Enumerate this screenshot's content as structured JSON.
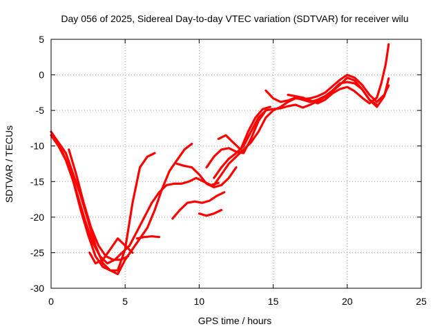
{
  "chart_data": {
    "type": "line",
    "title": "Day 056 of 2025, Sidereal Day-to-day VTEC variation (SDTVAR) for receiver wilu",
    "xlabel": "GPS time / hours",
    "ylabel": "SDTVAR / TECUs",
    "xlim": [
      0,
      25
    ],
    "ylim": [
      -30,
      5
    ],
    "xticks": [
      0,
      5,
      10,
      15,
      20,
      25
    ],
    "yticks": [
      -30,
      -25,
      -20,
      -15,
      -10,
      -5,
      0,
      5
    ],
    "x_tick_labels": [
      "0",
      "5",
      "10",
      "15",
      "20",
      "25"
    ],
    "y_tick_labels": [
      "-30",
      "-25",
      "-20",
      "-15",
      "-10",
      "-5",
      "0",
      "5"
    ],
    "grid": true,
    "color": "#ff0000",
    "series": [
      {
        "x": [
          0,
          0.5,
          1.0,
          1.5,
          2.0,
          2.5,
          3.0,
          3.5,
          4.0,
          4.5,
          5.0,
          5.5,
          6.0,
          6.5,
          7.0
        ],
        "y": [
          -8.5,
          -10,
          -12,
          -15,
          -19,
          -22.5,
          -25.5,
          -27,
          -27.5,
          -27.5,
          -24.5,
          -18,
          -13,
          -11.5,
          -11
        ]
      },
      {
        "x": [
          0,
          0.5,
          1.0,
          1.5,
          2.0,
          2.5,
          3.0,
          3.5,
          4.0,
          4.5,
          5.0,
          5.5,
          6.0,
          6.5,
          7.0,
          7.5,
          8.0,
          8.5,
          9.0,
          9.5
        ],
        "y": [
          -8,
          -9.5,
          -11,
          -14,
          -17,
          -20.5,
          -24,
          -26.5,
          -27.5,
          -28,
          -26,
          -24.5,
          -23,
          -21.5,
          -19,
          -16,
          -13.5,
          -12,
          -10.5,
          -9.7
        ]
      },
      {
        "x": [
          0.3,
          0.8,
          1.3,
          1.8,
          2.3,
          2.8,
          3.3,
          3.8,
          4.3,
          4.8,
          5.3,
          5.8,
          6.3,
          6.8,
          7.3,
          7.8,
          8.3,
          8.8,
          9.3,
          9.8,
          10.3,
          10.8,
          11.3
        ],
        "y": [
          -9.2,
          -11,
          -13.5,
          -17,
          -20.5,
          -23.5,
          -25.5,
          -26.5,
          -26,
          -25,
          -24,
          -22,
          -20,
          -18,
          -16.5,
          -15.5,
          -15.3,
          -15.3,
          -15,
          -14.5,
          -15,
          -15.5,
          -15.2
        ]
      },
      {
        "x": [
          1.2,
          1.7,
          2.2,
          2.7,
          3.2,
          3.7,
          4.2,
          4.7,
          5.2
        ],
        "y": [
          -10.5,
          -14,
          -18,
          -21.5,
          -24,
          -25.5,
          -26,
          -26,
          -25.5
        ]
      },
      {
        "x": [
          2.6,
          3.0,
          3.5,
          4.0,
          4.5,
          5.0,
          5.5
        ],
        "y": [
          -25,
          -26.5,
          -26,
          -24.5,
          -23,
          -24,
          -25
        ]
      },
      {
        "x": [
          5.8,
          6.3,
          6.8,
          7.3
        ],
        "y": [
          -23,
          -22.8,
          -22.7,
          -22.8
        ]
      },
      {
        "x": [
          8.5,
          9.0,
          9.5,
          10.0,
          10.5,
          11.0,
          11.5,
          12.0,
          12.5
        ],
        "y": [
          -12.5,
          -12.8,
          -13,
          -14,
          -15.3,
          -15.8,
          -15.5,
          -14.5,
          -13
        ]
      },
      {
        "x": [
          8.2,
          8.7,
          9.2,
          9.7,
          10.2,
          10.7,
          11.2,
          11.7
        ],
        "y": [
          -20.2,
          -19,
          -18,
          -17.8,
          -18,
          -17.7,
          -17,
          -16.5
        ]
      },
      {
        "x": [
          10.0,
          10.5,
          11.0,
          11.5
        ],
        "y": [
          -19.5,
          -19.8,
          -19.5,
          -19
        ]
      },
      {
        "x": [
          10.5,
          11.0,
          11.5,
          12.0,
          12.5,
          13.0,
          13.5,
          14.0,
          14.5
        ],
        "y": [
          -13,
          -11.5,
          -10.5,
          -10.3,
          -10.8,
          -11,
          -9,
          -6.5,
          -5
        ]
      },
      {
        "x": [
          11.3,
          11.8,
          12.3,
          12.8,
          13.3,
          13.8,
          14.3,
          14.8
        ],
        "y": [
          -9,
          -8.5,
          -9.5,
          -10.5,
          -8,
          -6,
          -4.8,
          -4.5
        ]
      },
      {
        "x": [
          11.0,
          11.5,
          12.0,
          12.5,
          13.0,
          13.5,
          14.0,
          14.5,
          15.0,
          15.5,
          16.0,
          16.5,
          17.0,
          17.5,
          18.0,
          18.5,
          19.0,
          19.5,
          20.0,
          20.5,
          21.0,
          21.5,
          22.0
        ],
        "y": [
          -14.5,
          -13,
          -11.8,
          -11,
          -10,
          -8,
          -6,
          -5,
          -4.8,
          -4.7,
          -4.4,
          -4.2,
          -4.6,
          -4.2,
          -3.7,
          -3.1,
          -2.3,
          -1.4,
          -0.4,
          -0.8,
          -2.0,
          -3.5,
          -4.2
        ]
      },
      {
        "x": [
          11.0,
          11.5,
          12.0,
          12.5,
          13.0,
          13.5,
          14.0,
          14.5,
          15.0,
          15.5,
          16.0,
          16.5,
          17.0,
          17.5,
          18.0,
          18.5,
          19.0,
          19.5,
          20.0,
          20.5,
          21.0,
          21.5,
          22.0,
          22.5,
          22.8
        ],
        "y": [
          -15.5,
          -14,
          -12.5,
          -11.5,
          -10.5,
          -9.5,
          -8,
          -6,
          -5,
          -4.5,
          -3.8,
          -3.3,
          -3.4,
          -3.3,
          -3.0,
          -2.5,
          -1.6,
          -0.7,
          0.0,
          -0.4,
          -1.4,
          -2.8,
          -3.8,
          -2.8,
          -1.5
        ]
      },
      {
        "x": [
          14.5,
          15.0,
          15.5,
          16.0,
          16.5,
          17.0,
          17.5,
          18.0,
          18.5,
          19.0,
          19.5,
          20.0,
          20.5,
          21.0,
          21.5,
          22.0,
          22.5,
          22.8
        ],
        "y": [
          -2.2,
          -3.3,
          -3.8,
          -3.6,
          -3.2,
          -3.5,
          -3.8,
          -3.5,
          -3.0,
          -2.2,
          -1.2,
          -1.0,
          -1.2,
          -2.0,
          -3.5,
          -4.5,
          -3.0,
          -0.5
        ]
      },
      {
        "x": [
          16.0,
          16.5,
          17.0,
          17.5,
          18.0,
          18.5,
          19.0,
          19.5,
          20.0,
          20.5,
          21.0,
          21.5,
          22.0,
          22.3,
          22.6,
          22.8
        ],
        "y": [
          -2.8,
          -3.0,
          -3.2,
          -3.6,
          -4.0,
          -3.5,
          -2.6,
          -2.0,
          -1.7,
          -2.3,
          -3.2,
          -4.0,
          -3.2,
          -1.2,
          1.5,
          4.3
        ]
      }
    ]
  }
}
